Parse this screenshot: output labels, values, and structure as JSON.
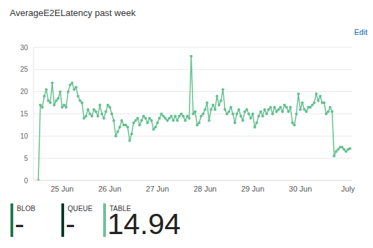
{
  "chart_data": {
    "type": "line",
    "title": "AverageE2ELatency past week",
    "categories": [
      null,
      null,
      null,
      null,
      null,
      null,
      null,
      null,
      null,
      null,
      null,
      null,
      "25 Jun",
      null,
      null,
      null,
      null,
      null,
      null,
      null,
      null,
      null,
      null,
      null,
      null,
      null,
      null,
      null,
      null,
      null,
      null,
      null,
      null,
      null,
      null,
      null,
      "26 Jun",
      null,
      null,
      null,
      null,
      null,
      null,
      null,
      null,
      null,
      null,
      null,
      null,
      null,
      null,
      null,
      null,
      null,
      null,
      null,
      null,
      null,
      null,
      null,
      "27 Jun",
      null,
      null,
      null,
      null,
      null,
      null,
      null,
      null,
      null,
      null,
      null,
      null,
      null,
      null,
      null,
      null,
      null,
      null,
      null,
      null,
      null,
      null,
      null,
      "28 Jun",
      null,
      null,
      null,
      null,
      null,
      null,
      null,
      null,
      null,
      null,
      null,
      null,
      null,
      null,
      null,
      null,
      null,
      null,
      null,
      null,
      null,
      null,
      null,
      "29 Jun",
      null,
      null,
      null,
      null,
      null,
      null,
      null,
      null,
      null,
      null,
      null,
      null,
      null,
      null,
      null,
      null,
      null,
      null,
      null,
      null,
      null,
      null,
      null,
      "30 Jun",
      null,
      null,
      null,
      null,
      null,
      null,
      null,
      null,
      null,
      null,
      null,
      null,
      null,
      null,
      null,
      null,
      null,
      null,
      null,
      null,
      null,
      null,
      null,
      "July",
      null
    ],
    "series": [
      {
        "name": "TABLE",
        "color": "#62c08f",
        "marker": "circle",
        "values": [
          0,
          17,
          16.5,
          19,
          20.5,
          18,
          17.5,
          22,
          17,
          18,
          18.5,
          20,
          16.5,
          17,
          16.5,
          20,
          21.5,
          22,
          20.5,
          21,
          19,
          18,
          17.5,
          14,
          14.5,
          16,
          15,
          14.5,
          16,
          15.5,
          14.5,
          17,
          15,
          14,
          15.5,
          17,
          16.5,
          15,
          13.5,
          10,
          11,
          12,
          13.5,
          12.5,
          12.5,
          12,
          9,
          10.5,
          13,
          13.5,
          14,
          12.5,
          13.5,
          14.5,
          14,
          13,
          14,
          13.5,
          11.5,
          12,
          13,
          14,
          15,
          14.5,
          14,
          13.5,
          14,
          14.5,
          13.5,
          14.5,
          13.5,
          14.5,
          15,
          14.5,
          13.5,
          14.5,
          14,
          28,
          15,
          15.5,
          12.5,
          13,
          14.5,
          15,
          16,
          17.5,
          13.5,
          16,
          17,
          16,
          19,
          17,
          18,
          20.5,
          16,
          15,
          15.5,
          16.5,
          15,
          13,
          15,
          16,
          14.5,
          13.5,
          15.5,
          16,
          15,
          14,
          15,
          12,
          13,
          14.5,
          15.5,
          14.5,
          16,
          15,
          16,
          16.5,
          15,
          16.5,
          15.5,
          16,
          16.5,
          15.5,
          17,
          16.5,
          15.5,
          16.5,
          13,
          12.5,
          15,
          19.5,
          16,
          17.5,
          16,
          15.5,
          16.5,
          16.5,
          17,
          17.5,
          19.5,
          18,
          19,
          17.5,
          17.5,
          15,
          15.5,
          16.5,
          15.5,
          5.5,
          6.5,
          7,
          7.5,
          7.5,
          7,
          6.5,
          7,
          7.2
        ]
      }
    ],
    "ylim": [
      0,
      30
    ],
    "yticks": [
      0,
      5,
      10,
      15,
      20,
      25,
      30
    ],
    "grid": true
  },
  "edit_link": "Edit",
  "summary": [
    {
      "name": "BLOB",
      "value": "-",
      "color": "#1e7a46"
    },
    {
      "name": "QUEUE",
      "value": "-",
      "color": "#0b3b2a"
    },
    {
      "name": "TABLE",
      "value": 14.94,
      "color": "#6cc399"
    }
  ]
}
